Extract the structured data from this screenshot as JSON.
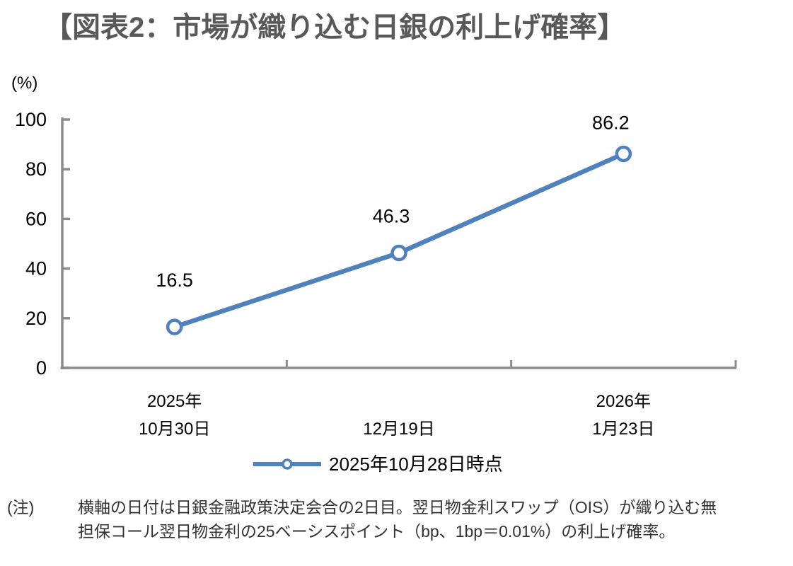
{
  "title": "【図表2：市場が織り込む日銀の利上げ確率】",
  "chart_data": {
    "type": "line",
    "title": "【図表2：市場が織り込む日銀の利上げ確率】",
    "ylabel": "(%)",
    "xlabel": "",
    "categories": [
      {
        "year": "2025年",
        "date": "10月30日"
      },
      {
        "year": "",
        "date": "12月19日"
      },
      {
        "year": "2026年",
        "date": "1月23日"
      }
    ],
    "values": [
      16.5,
      46.3,
      86.2
    ],
    "value_labels": [
      "16.5",
      "46.3",
      "86.2"
    ],
    "yticks": [
      0,
      20,
      40,
      60,
      80,
      100
    ],
    "ylim": [
      0,
      100
    ],
    "grid": false,
    "legend": {
      "label": "2025年10月28日時点",
      "position": "bottom-center"
    },
    "series_color": "#4f81bd",
    "marker_fill": "#ffffff",
    "axis_color": "#8c8c8c"
  },
  "note": {
    "label": "(注)",
    "line1": "横軸の日付は日銀金融政策決定会合の2日目。翌日物金利スワップ（OIS）が織り込む無",
    "line2": "担保コール翌日物金利の25ベーシスポイント（bp、1bp＝0.01%）の利上げ確率。"
  },
  "colors": {
    "title": "#595959",
    "text": "#000000",
    "note": "#333333"
  }
}
